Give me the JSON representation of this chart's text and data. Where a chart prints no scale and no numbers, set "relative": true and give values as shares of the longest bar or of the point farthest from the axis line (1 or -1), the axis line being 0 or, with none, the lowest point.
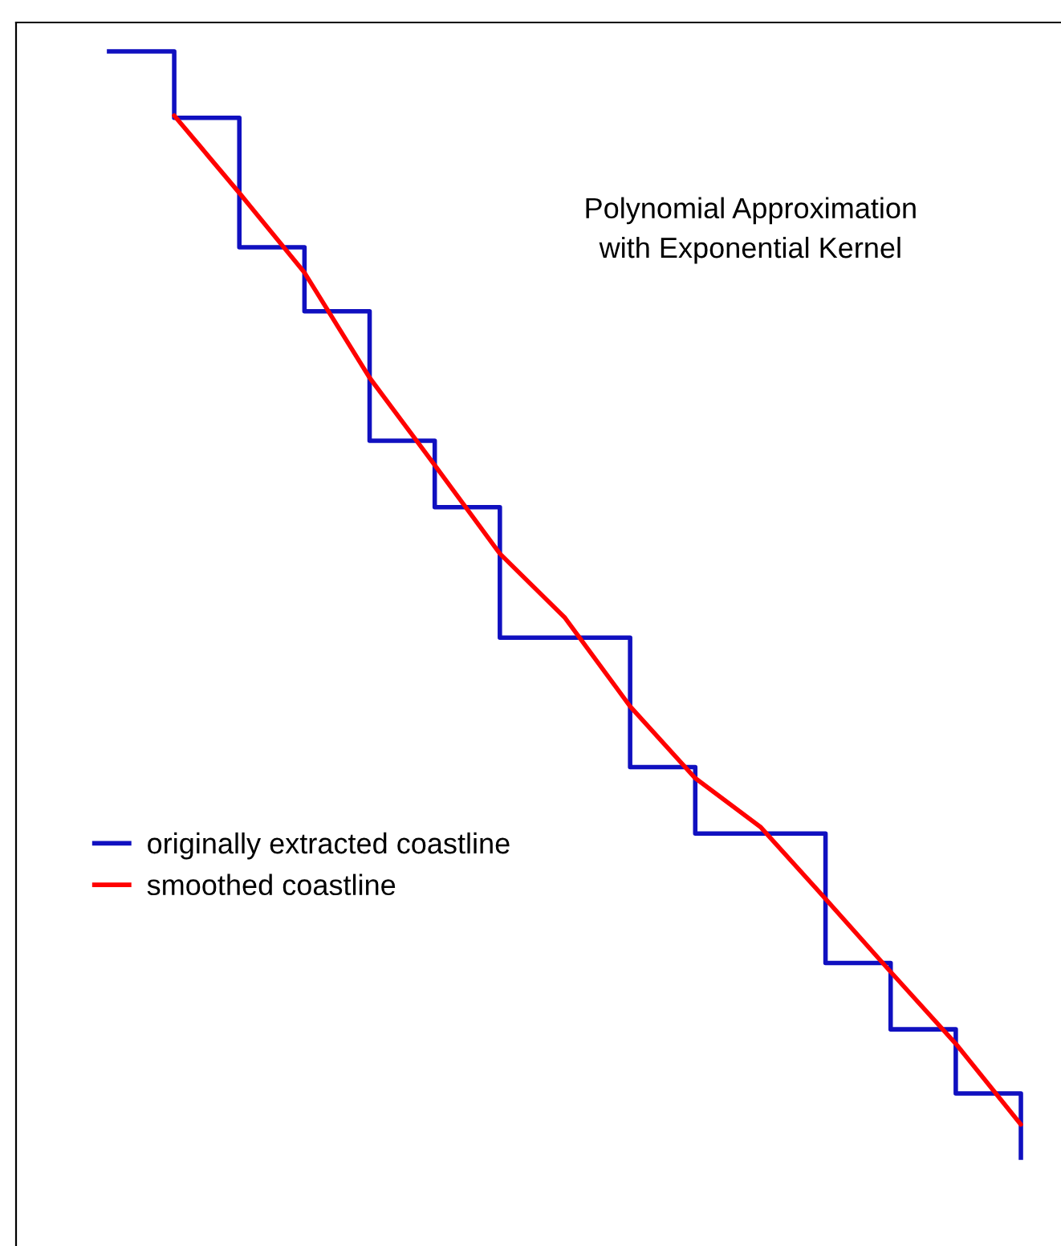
{
  "chart_data": {
    "type": "step",
    "relative": true,
    "title": "Polynomial Approximation\nwith Exponential Kernel",
    "categories": [
      null,
      null,
      null,
      null,
      null,
      null,
      null,
      null,
      null,
      null,
      null,
      null,
      null,
      null,
      null
    ],
    "series": [
      {
        "name": "originally extracted coastline",
        "color": "#1010c0",
        "values": [
          1.0,
          0.94,
          0.823,
          0.765,
          0.648,
          0.588,
          0.47,
          0.47,
          0.353,
          0.293,
          0.293,
          0.176,
          0.116,
          0.058,
          0.0
        ]
      },
      {
        "name": "smoothed coastline",
        "type": "line",
        "color": "#ff0000",
        "values": [
          null,
          0.942,
          0.872,
          0.8,
          0.705,
          0.626,
          0.546,
          0.488,
          0.408,
          0.343,
          0.299,
          0.234,
          0.168,
          0.103,
          0.03
        ]
      }
    ],
    "legend": "left"
  }
}
